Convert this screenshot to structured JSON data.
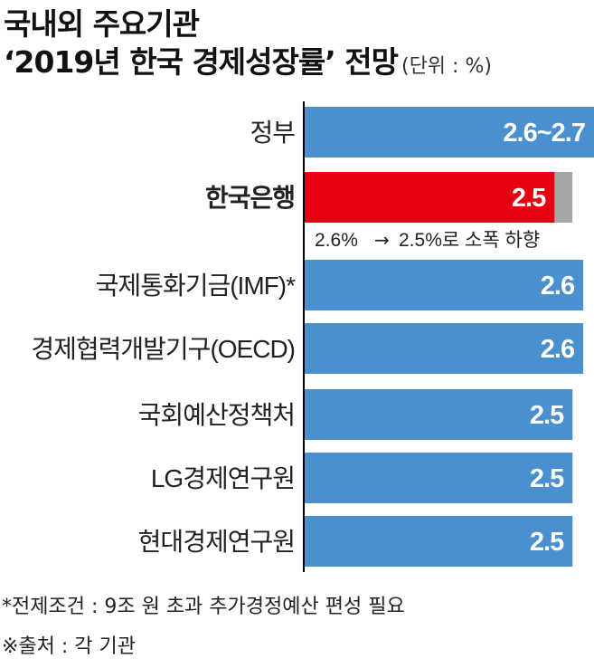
{
  "title": "국내외 주요기관",
  "subtitle": "‘2019년 한국 경제성장률’ 전망",
  "unit": "(단위 : %)",
  "chart_data": {
    "type": "bar",
    "orientation": "horizontal",
    "title": "국내외 주요기관 ‘2019년 한국 경제성장률’ 전망",
    "unit": "%",
    "categories": [
      "정부",
      "한국은행",
      "국제통화기금(IMF)*",
      "경제협력개발기구(OECD)",
      "국회예산정책처",
      "LG경제연구원",
      "현대경제연구원"
    ],
    "values": [
      2.7,
      2.5,
      2.6,
      2.6,
      2.5,
      2.5,
      2.5
    ],
    "value_labels": [
      "2.6~2.7",
      "2.5",
      "2.6",
      "2.6",
      "2.5",
      "2.5",
      "2.5"
    ],
    "highlight_index": 1,
    "previous_value": {
      "index": 1,
      "value": 2.6
    },
    "annotation": {
      "index": 1,
      "from": "2.6%",
      "arrow": "→",
      "to": "2.5%로 소폭 하향"
    },
    "xlim": [
      0,
      2.7
    ],
    "colors": {
      "bar": "#4a8fce",
      "highlight": "#e60012",
      "previous": "#a6a6a6",
      "axis": "#000000"
    }
  },
  "footnotes": [
    "*전제조건 : 9조 원 초과 추가경정예산 편성 필요",
    "※출처 : 각 기관"
  ]
}
